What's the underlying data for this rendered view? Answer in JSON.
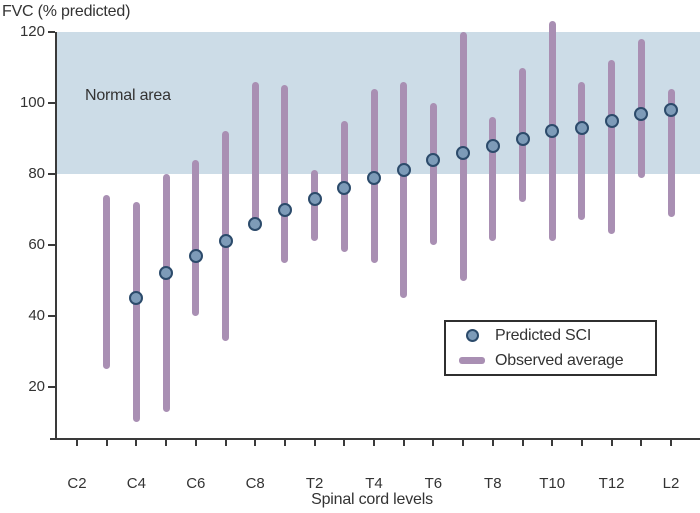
{
  "colors": {
    "normal_area_band": "#ccdce7",
    "observed_bar": "#a98fb3",
    "predicted_dot_fill": "#7d9bb8",
    "predicted_dot_border": "#2c4b6b",
    "axis": "#3a3a3a",
    "text": "#333333",
    "background": "#ffffff"
  },
  "chart_data": {
    "type": "scatter",
    "title": "FVC (% predicted)",
    "xlabel": "Spinal cord levels",
    "ylabel": "FVC (% predicted)",
    "ylim": [
      5,
      120
    ],
    "y_ticks": [
      120,
      100,
      80,
      60,
      40,
      20
    ],
    "grid": "off",
    "legend_position": "inside lower-right box",
    "x_levels": [
      "C2",
      "C3",
      "C4",
      "C5",
      "C6",
      "C7",
      "C8",
      "T1",
      "T2",
      "T3",
      "T4",
      "T5",
      "T6",
      "T7",
      "T8",
      "T9",
      "T10",
      "T11",
      "T12",
      "L1",
      "L2"
    ],
    "x_tick_labels": [
      "C2",
      "C4",
      "C6",
      "C8",
      "T2",
      "T4",
      "T6",
      "T8",
      "T10",
      "T12",
      "L2"
    ],
    "normal_area": {
      "label": "Normal area",
      "ymin": 80,
      "ymax": 120
    },
    "legend": [
      {
        "label": "Predicted SCI",
        "marker": "circle"
      },
      {
        "label": "Observed average",
        "marker": "bar"
      }
    ],
    "series": [
      {
        "name": "Predicted SCI",
        "type": "point",
        "points": [
          {
            "level": "C4",
            "value": 45
          },
          {
            "level": "C5",
            "value": 52
          },
          {
            "level": "C6",
            "value": 57
          },
          {
            "level": "C7",
            "value": 61
          },
          {
            "level": "C8",
            "value": 66
          },
          {
            "level": "T1",
            "value": 70
          },
          {
            "level": "T2",
            "value": 73
          },
          {
            "level": "T3",
            "value": 76
          },
          {
            "level": "T4",
            "value": 79
          },
          {
            "level": "T5",
            "value": 81
          },
          {
            "level": "T6",
            "value": 84
          },
          {
            "level": "T7",
            "value": 86
          },
          {
            "level": "T8",
            "value": 88
          },
          {
            "level": "T9",
            "value": 90
          },
          {
            "level": "T10",
            "value": 92
          },
          {
            "level": "T11",
            "value": 93
          },
          {
            "level": "T12",
            "value": 95
          },
          {
            "level": "L1",
            "value": 97
          },
          {
            "level": "L2",
            "value": 98
          }
        ]
      },
      {
        "name": "Observed average",
        "type": "range",
        "ranges": [
          {
            "level": "C3",
            "low": 25,
            "high": 74
          },
          {
            "level": "C4",
            "low": 10,
            "high": 72
          },
          {
            "level": "C5",
            "low": 13,
            "high": 80
          },
          {
            "level": "C6",
            "low": 40,
            "high": 84
          },
          {
            "level": "C7",
            "low": 33,
            "high": 92
          },
          {
            "level": "C8",
            "low": 64,
            "high": 106
          },
          {
            "level": "T1",
            "low": 55,
            "high": 105
          },
          {
            "level": "T2",
            "low": 61,
            "high": 81
          },
          {
            "level": "T3",
            "low": 58,
            "high": 95
          },
          {
            "level": "T4",
            "low": 55,
            "high": 104
          },
          {
            "level": "T5",
            "low": 45,
            "high": 106
          },
          {
            "level": "T6",
            "low": 60,
            "high": 100
          },
          {
            "level": "T7",
            "low": 50,
            "high": 120
          },
          {
            "level": "T8",
            "low": 61,
            "high": 96
          },
          {
            "level": "T9",
            "low": 72,
            "high": 110
          },
          {
            "level": "T10",
            "low": 61,
            "high": 123
          },
          {
            "level": "T11",
            "low": 67,
            "high": 106
          },
          {
            "level": "T12",
            "low": 63,
            "high": 112
          },
          {
            "level": "L1",
            "low": 79,
            "high": 118
          },
          {
            "level": "L2",
            "low": 68,
            "high": 104
          }
        ]
      }
    ]
  }
}
